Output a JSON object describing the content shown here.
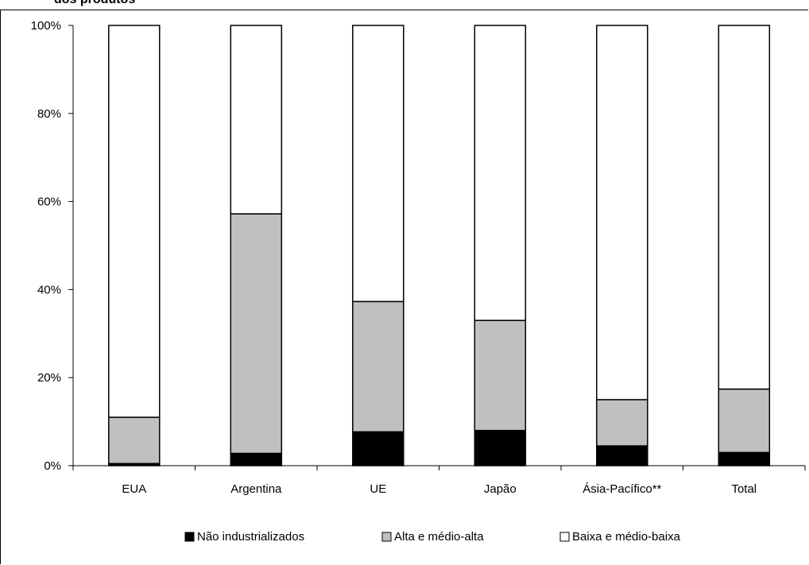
{
  "chart_data": {
    "type": "bar",
    "stacked": true,
    "title": "dos produtos",
    "categories": [
      "EUA",
      "Argentina",
      "UE",
      "Japão",
      "Ásia-Pacífico**",
      "Total"
    ],
    "series": [
      {
        "name": "Não industrializados",
        "color": "#000000",
        "values": [
          0.5,
          2.8,
          7.7,
          8.0,
          4.5,
          3.0
        ]
      },
      {
        "name": "Alta e médio-alta",
        "color": "#c0c0c0",
        "values": [
          10.5,
          54.4,
          29.6,
          25.0,
          10.5,
          14.4
        ]
      },
      {
        "name": "Baixa e médio-baixa",
        "color": "#ffffff",
        "values": [
          89.0,
          42.8,
          62.7,
          67.0,
          85.0,
          82.6
        ]
      }
    ],
    "y_ticks": [
      "0%",
      "20%",
      "40%",
      "60%",
      "80%",
      "100%"
    ],
    "ylim": [
      0,
      100
    ],
    "grid": false,
    "legend_position": "bottom"
  }
}
